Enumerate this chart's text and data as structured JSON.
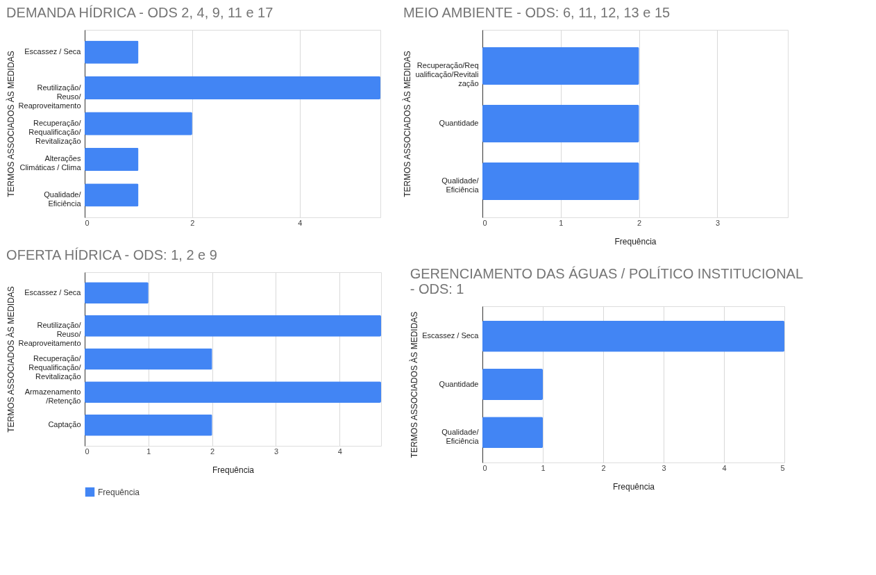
{
  "chart_data": [
    {
      "type": "bar",
      "orientation": "horizontal",
      "title": "DEMANDA HÍDRICA - ODS 2, 4, 9, 11 e 17",
      "ylabel": "TERMOS ASSOCIADOS ÀS MEDIDAS",
      "categories": [
        "Escassez / Seca",
        "Reutilização/\nReuso/\nReaproveitamento",
        "Recuperação/\nRequalificação/\nRevitalização",
        "Alterações\nClimáticas / Clima",
        "Qualidade/\nEficiência"
      ],
      "series": [
        {
          "name": "Frequência",
          "color": "#4285f4",
          "values": [
            1,
            5.5,
            2,
            1,
            1
          ]
        }
      ],
      "xlim": [
        0,
        5.5
      ],
      "xticks": [
        0,
        2,
        4
      ],
      "grid": "x",
      "legend": "bottom"
    },
    {
      "type": "bar",
      "orientation": "horizontal",
      "title": "MEIO AMBIENTE - ODS: 6, 11, 12, 13 e 15",
      "xlabel": "Frequência",
      "ylabel": "TERMOS ASSOCIADOS ÀS MEDIDAS",
      "categories": [
        "Recuperação/Req\nualificação/Revitali\nzação",
        "Quantidade",
        "Qualidade/\nEficiência"
      ],
      "values": [
        2,
        2,
        2
      ],
      "color": "#4285f4",
      "xlim": [
        0,
        3.9
      ],
      "xticks": [
        0,
        1,
        2,
        3
      ],
      "grid": "x"
    },
    {
      "type": "bar",
      "orientation": "horizontal",
      "title": "OFERTA HÍDRICA - ODS: 1, 2 e 9",
      "xlabel": "Frequência",
      "ylabel": "TERMOS ASSOCIADOS ÀS MEDIDAS",
      "categories": [
        "Escassez / Seca",
        "Reutilização/\nReuso/\nReaproveitamento",
        "Recuperação/\nRequalificação/\nRevitalização",
        "Armazenamento\n/Retenção",
        "Captação"
      ],
      "values": [
        1,
        4.65,
        2,
        4.65,
        2
      ],
      "color": "#4285f4",
      "xlim": [
        0,
        4.65
      ],
      "xticks": [
        0,
        1,
        2,
        3,
        4
      ],
      "grid": "x"
    },
    {
      "type": "bar",
      "orientation": "horizontal",
      "title": "GERENCIAMENTO DAS ÁGUAS / POLÍTICO INSTITUCIONAL - ODS: 1",
      "xlabel": "Frequência",
      "ylabel": "TERMOS ASSOCIADOS ÀS MEDIDAS",
      "categories": [
        "Escassez / Seca",
        "Quantidade",
        "Qualidade/\nEficiência"
      ],
      "values": [
        5,
        1,
        1
      ],
      "color": "#4285f4",
      "xlim": [
        0,
        5
      ],
      "xticks": [
        0,
        1,
        2,
        3,
        4,
        5
      ],
      "grid": "x"
    }
  ]
}
